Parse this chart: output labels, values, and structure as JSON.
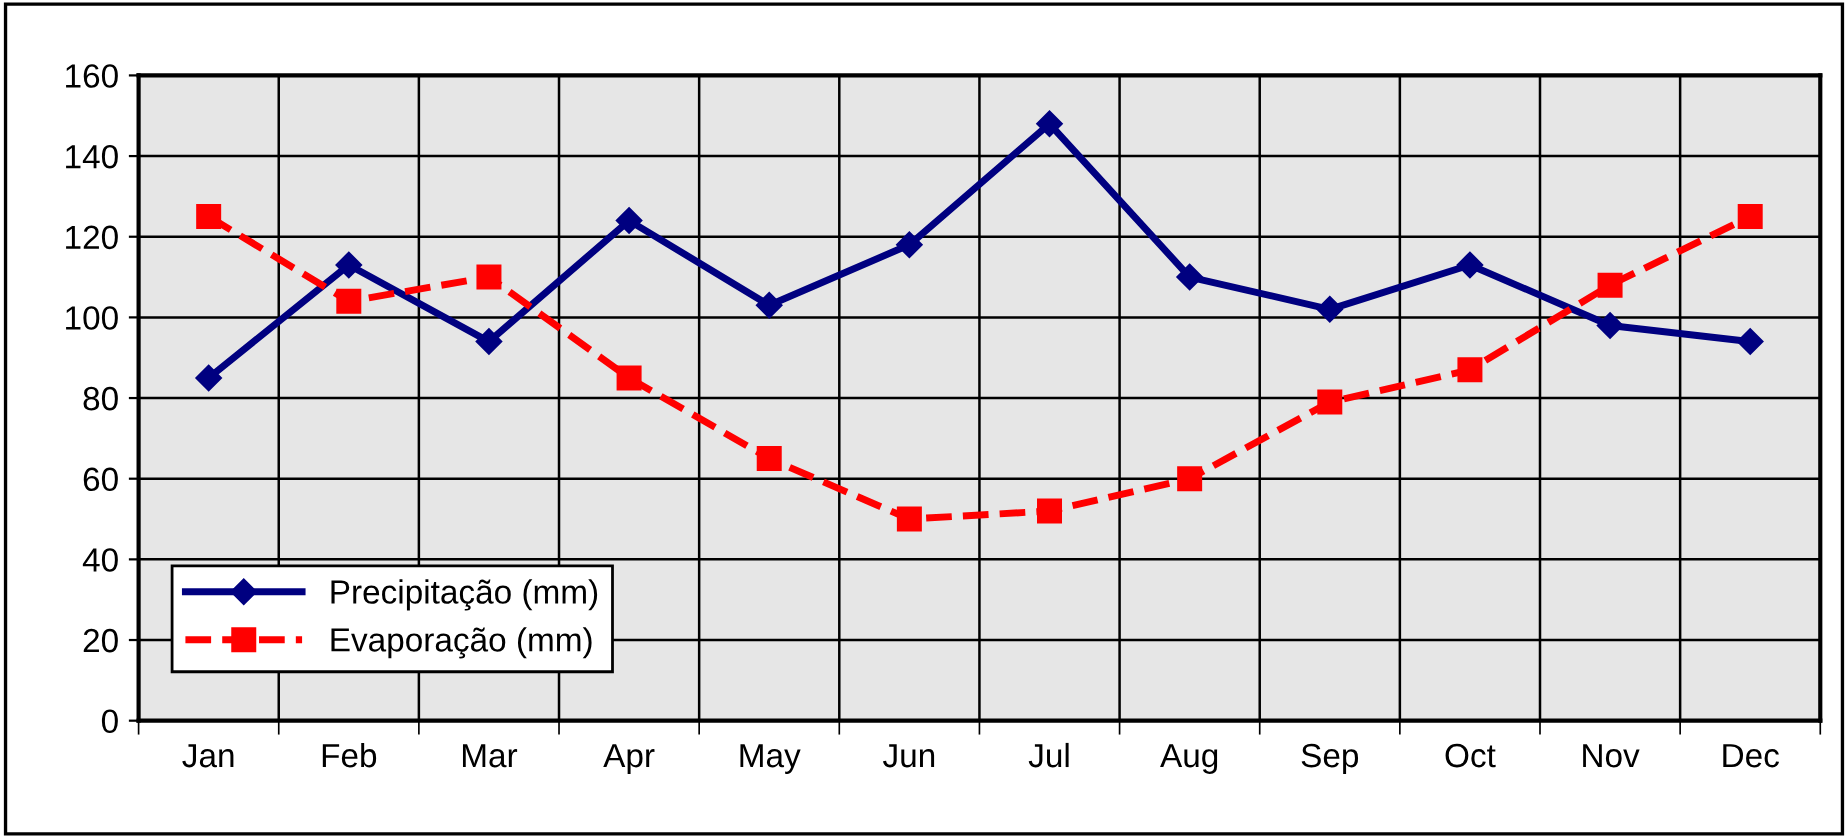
{
  "chart_data": {
    "type": "line",
    "categories": [
      "Jan",
      "Feb",
      "Mar",
      "Apr",
      "May",
      "Jun",
      "Jul",
      "Aug",
      "Sep",
      "Oct",
      "Nov",
      "Dec"
    ],
    "series": [
      {
        "name": "Precipitação (mm)",
        "color": "#000080",
        "marker": "diamond",
        "line_style": "solid",
        "values": [
          85,
          113,
          94,
          124,
          103,
          118,
          148,
          110,
          102,
          113,
          98,
          94
        ]
      },
      {
        "name": "Evaporação (mm)",
        "color": "#ff0000",
        "marker": "square",
        "line_style": "dashed",
        "values": [
          125,
          104,
          110,
          85,
          65,
          50,
          52,
          60,
          79,
          87,
          108,
          125
        ]
      }
    ],
    "ylim": [
      0,
      160
    ],
    "yticks": [
      0,
      20,
      40,
      60,
      80,
      100,
      120,
      140,
      160
    ],
    "grid": true,
    "legend": "bottom left"
  }
}
